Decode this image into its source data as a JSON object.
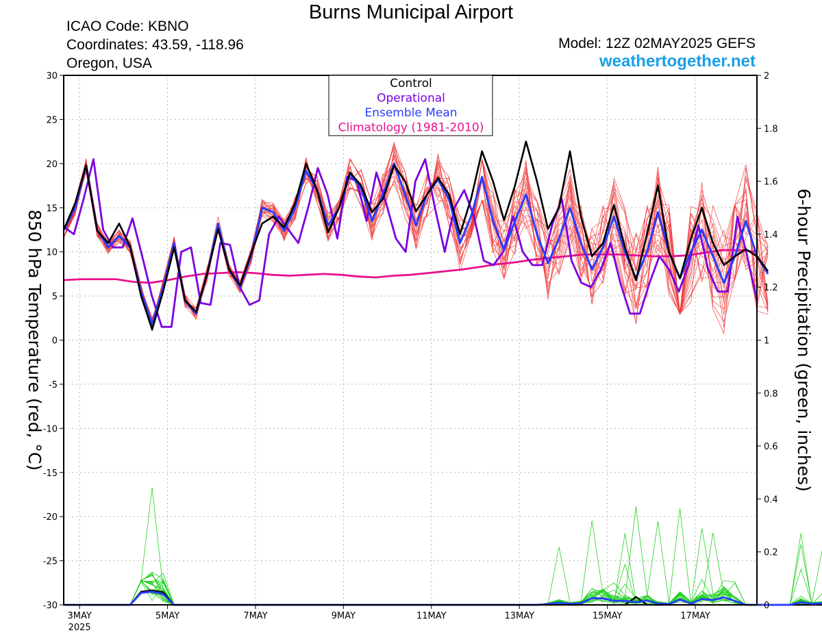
{
  "header": {
    "title": "Burns Municipal Airport",
    "icao": "ICAO Code: KBNO",
    "coords": "Coordinates: 43.59, -118.96",
    "region": "Oregon, USA",
    "model": "Model: 12Z 02MAY2025 GEFS",
    "site": "weathertogether.net"
  },
  "colors": {
    "control": "#000000",
    "operational": "#7a00e0",
    "ensemble_mean": "#2a3cff",
    "climatology": "#e8108c",
    "members_temp": "#f03c3c",
    "members_precip": "#20d020"
  },
  "chart_data": {
    "type": "line",
    "title": "Burns Municipal Airport",
    "ylabel": "850 hPa Temperature (red, °C)",
    "y2label": "6-hour Precipitation (green, inches)",
    "ylim": [
      -30,
      30
    ],
    "y2lim": [
      0,
      2
    ],
    "xlim_day": [
      2.64,
      18.4
    ],
    "y_ticks": [
      "30",
      "25",
      "20",
      "15",
      "10",
      "5",
      "0",
      "-5",
      "-10",
      "-15",
      "-20",
      "-25",
      "-30"
    ],
    "y2_ticks": [
      "2",
      "1.8",
      "1.6",
      "1.4",
      "1.2",
      "1",
      "0.8",
      "0.6",
      "0.4",
      "0.2",
      "0"
    ],
    "x_ticks": [
      {
        "label": "3MAY",
        "day": 3
      },
      {
        "label": "5MAY",
        "day": 5
      },
      {
        "label": "7MAY",
        "day": 7
      },
      {
        "label": "9MAY",
        "day": 9
      },
      {
        "label": "11MAY",
        "day": 11
      },
      {
        "label": "13MAY",
        "day": 13
      },
      {
        "label": "15MAY",
        "day": 15
      },
      {
        "label": "17MAY",
        "day": 17
      }
    ],
    "year_label": "2025",
    "legend": [
      "Control",
      "Operational",
      "Ensemble Mean",
      "Climatology (1981-2010)"
    ],
    "legend_position": "top-center",
    "grid": true,
    "x_day_start": 2.65,
    "x_day_step": 0.25,
    "series": [
      {
        "name": "Control",
        "values": [
          12.6,
          15.5,
          19.8,
          12.4,
          11.0,
          13.2,
          10.6,
          5.0,
          1.2,
          5.5,
          10.5,
          4.5,
          3.2,
          7.5,
          12.6,
          8.0,
          6.2,
          9.8,
          13.2,
          14.0,
          12.8,
          15.5,
          20.0,
          17.0,
          12.2,
          15.0,
          19.0,
          17.5,
          14.5,
          16.0,
          19.8,
          18.0,
          14.6,
          16.5,
          18.4,
          16.5,
          12.0,
          16.0,
          21.4,
          18.0,
          13.6,
          17.5,
          22.5,
          18.0,
          12.6,
          15.0,
          21.4,
          14.0,
          9.5,
          11.0,
          15.3,
          10.5,
          6.8,
          12.0,
          17.5,
          10.0,
          7.0,
          11.5,
          15.0,
          11.0,
          8.5,
          9.5,
          10.3,
          9.5,
          7.8
        ]
      },
      {
        "name": "Operational",
        "values": [
          12.8,
          12.0,
          16.0,
          20.5,
          12.5,
          10.5,
          10.5,
          13.8,
          9.5,
          5.0,
          1.5,
          1.5,
          10.0,
          10.5,
          4.2,
          4.0,
          11.0,
          10.8,
          6.0,
          4.0,
          4.5,
          12.0,
          14.0,
          12.5,
          11.0,
          15.0,
          19.5,
          16.5,
          11.5,
          18.5,
          18.0,
          13.5,
          19.0,
          15.5,
          11.5,
          10.0,
          18.0,
          20.5,
          15.0,
          10.0,
          15.0,
          17.0,
          14.0,
          9.0,
          8.5,
          10.0,
          14.0,
          10.0,
          8.5,
          8.5,
          13.0,
          16.0,
          9.0,
          6.5,
          6.0,
          8.0,
          11.0,
          6.5,
          3.0,
          3.0,
          6.5,
          9.5,
          8.0,
          5.5,
          8.5,
          13.0,
          8.0,
          5.5,
          5.5,
          14.0,
          9.5,
          4.5
        ]
      },
      {
        "name": "Ensemble Mean",
        "values": [
          12.5,
          15.0,
          19.8,
          12.5,
          10.5,
          11.8,
          10.5,
          5.5,
          1.8,
          6.0,
          11.0,
          4.4,
          3.0,
          7.5,
          13.2,
          8.0,
          6.0,
          9.5,
          15.0,
          14.5,
          12.4,
          15.0,
          19.2,
          17.0,
          13.0,
          15.0,
          18.8,
          17.2,
          13.5,
          16.5,
          20.0,
          16.5,
          13.0,
          16.5,
          18.2,
          16.0,
          11.0,
          14.0,
          18.5,
          13.5,
          10.2,
          13.5,
          16.5,
          12.0,
          8.7,
          11.5,
          15.0,
          11.0,
          8.0,
          10.5,
          14.0,
          10.0,
          7.0,
          10.0,
          14.5,
          10.0,
          7.0,
          10.0,
          12.5,
          9.5,
          6.5,
          9.5,
          13.5,
          9.5,
          7.5
        ]
      },
      {
        "name": "Climatology (1981-2010)",
        "values": [
          6.8,
          6.9,
          6.9,
          6.9,
          6.6,
          6.5,
          6.8,
          7.2,
          7.5,
          7.6,
          7.7,
          7.6,
          7.4,
          7.3,
          7.4,
          7.5,
          7.4,
          7.2,
          7.1,
          7.3,
          7.4,
          7.6,
          7.8,
          8.0,
          8.3,
          8.6,
          8.8,
          9.1,
          9.3,
          9.5,
          9.7,
          9.7,
          9.7,
          9.6,
          9.5,
          9.5,
          9.6,
          9.9,
          10.2,
          10.2,
          10.0
        ]
      }
    ],
    "precip_series": [
      {
        "name": "Control",
        "values": [
          0.0,
          0.0,
          0.0,
          0.0,
          0.0,
          0.0,
          0.0,
          0.05,
          0.055,
          0.048,
          0.0,
          0.0,
          0.0,
          0.0,
          0.0,
          0.0,
          0.0,
          0.0,
          0.0,
          0.0,
          0.0,
          0.0,
          0.0,
          0.0,
          0.0,
          0.0,
          0.0,
          0.0,
          0.0,
          0.0,
          0.0,
          0.0,
          0.0,
          0.0,
          0.0,
          0.0,
          0.0,
          0.0,
          0.0,
          0.0,
          0.0,
          0.0,
          0.0,
          0.0,
          0.0,
          0.0,
          0.0,
          0.0,
          0.0,
          0.0,
          0.0,
          0.0,
          0.03,
          0.0,
          0.0,
          0.0,
          0.0,
          0.0,
          0.0,
          0.0,
          0.0,
          0.0,
          0.0,
          0.0,
          0.0,
          0.0,
          0.0,
          0.0,
          0.0,
          0.0,
          0.0,
          0.0,
          0.0,
          0.0,
          0.0,
          0.0,
          0.0,
          0.0,
          0.0,
          0.0,
          0.0,
          0.0
        ]
      },
      {
        "name": "Ensemble Mean",
        "values": [
          0.0,
          0.0,
          0.0,
          0.0,
          0.0,
          0.0,
          0.0,
          0.045,
          0.05,
          0.04,
          0.0,
          0.0,
          0.0,
          0.0,
          0.0,
          0.0,
          0.0,
          0.0,
          0.0,
          0.0,
          0.0,
          0.0,
          0.0,
          0.0,
          0.0,
          0.0,
          0.0,
          0.0,
          0.0,
          0.0,
          0.0,
          0.0,
          0.0,
          0.0,
          0.0,
          0.0,
          0.0,
          0.0,
          0.0,
          0.0,
          0.0,
          0.0,
          0.0,
          0.0,
          0.003,
          0.008,
          0.004,
          0.006,
          0.025,
          0.024,
          0.015,
          0.015,
          0.01,
          0.016,
          0.005,
          0.003,
          0.02,
          0.005,
          0.022,
          0.018,
          0.028,
          0.015,
          0.0,
          0.0,
          0.0,
          0.0,
          0.0,
          0.01,
          0.004,
          0.006,
          0.02,
          0.006,
          0.006,
          0.002,
          0.0,
          0.004,
          0.0,
          0.035,
          0.012,
          0.015,
          0.005,
          0.025,
          0.03
        ]
      }
    ]
  }
}
